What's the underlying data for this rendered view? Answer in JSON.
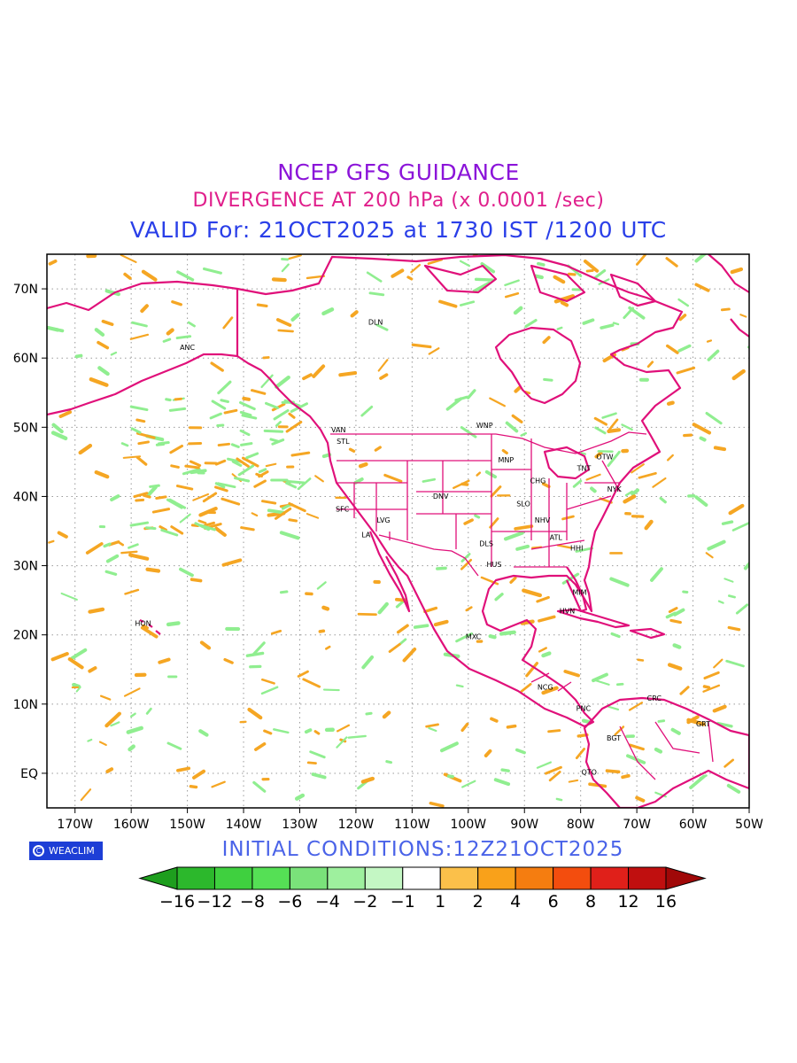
{
  "titles": {
    "line1": "NCEP GFS GUIDANCE",
    "line2": "DIVERGENCE AT 200 hPa (x 0.0001 /sec)",
    "line3": "VALID For: 21OCT2025 at 1730 IST /1200 UTC"
  },
  "colors": {
    "title1": "#8b14d9",
    "title2": "#e0208c",
    "title3": "#2a3fe8",
    "coastline": "#e0107a",
    "grid": "#999999",
    "positive_contour": "#f5a623",
    "negative_contour": "#90ee90"
  },
  "map": {
    "lon_range": [
      -175,
      -50
    ],
    "lat_range": [
      -5,
      75
    ],
    "lon_ticks": [
      "170W",
      "160W",
      "150W",
      "140W",
      "130W",
      "120W",
      "110W",
      "100W",
      "90W",
      "80W",
      "70W",
      "60W",
      "50W"
    ],
    "lat_ticks": [
      "EQ",
      "10N",
      "20N",
      "30N",
      "40N",
      "50N",
      "60N",
      "70N"
    ],
    "stations": [
      {
        "code": "ANC",
        "lon": -150.0,
        "lat": 61.2
      },
      {
        "code": "DLN",
        "lon": -116.5,
        "lat": 64.8
      },
      {
        "code": "VAN",
        "lon": -123.1,
        "lat": 49.3
      },
      {
        "code": "STL",
        "lon": -122.3,
        "lat": 47.6
      },
      {
        "code": "WNP",
        "lon": -97.1,
        "lat": 49.9
      },
      {
        "code": "MNP",
        "lon": -93.3,
        "lat": 44.9
      },
      {
        "code": "OTW",
        "lon": -75.7,
        "lat": 45.4
      },
      {
        "code": "TNT",
        "lon": -79.4,
        "lat": 43.7
      },
      {
        "code": "CHG",
        "lon": -87.6,
        "lat": 41.9
      },
      {
        "code": "NYK",
        "lon": -74.0,
        "lat": 40.7
      },
      {
        "code": "DNV",
        "lon": -104.9,
        "lat": 39.7
      },
      {
        "code": "SLO",
        "lon": -90.2,
        "lat": 38.6
      },
      {
        "code": "SFC",
        "lon": -122.4,
        "lat": 37.8
      },
      {
        "code": "LVG",
        "lon": -115.1,
        "lat": 36.2
      },
      {
        "code": "NHV",
        "lon": -86.8,
        "lat": 36.2
      },
      {
        "code": "LA",
        "lon": -118.2,
        "lat": 34.1
      },
      {
        "code": "ATL",
        "lon": -84.4,
        "lat": 33.7
      },
      {
        "code": "DLS",
        "lon": -96.8,
        "lat": 32.8
      },
      {
        "code": "HHI",
        "lon": -80.7,
        "lat": 32.2
      },
      {
        "code": "HUS",
        "lon": -95.4,
        "lat": 29.8
      },
      {
        "code": "MIM",
        "lon": -80.2,
        "lat": 25.8
      },
      {
        "code": "HON",
        "lon": -157.9,
        "lat": 21.3
      },
      {
        "code": "HVN",
        "lon": -82.4,
        "lat": 23.1
      },
      {
        "code": "MXC",
        "lon": -99.1,
        "lat": 19.4
      },
      {
        "code": "NCG",
        "lon": -86.3,
        "lat": 12.1
      },
      {
        "code": "CRC",
        "lon": -66.9,
        "lat": 10.5
      },
      {
        "code": "PNC",
        "lon": -79.5,
        "lat": 9.0
      },
      {
        "code": "GRT",
        "lon": -58.2,
        "lat": 6.8
      },
      {
        "code": "BGT",
        "lon": -74.1,
        "lat": 4.7
      },
      {
        "code": "QTO",
        "lon": -78.5,
        "lat": -0.2
      }
    ]
  },
  "badge": {
    "label": "WEACLIM",
    "symbol": "C"
  },
  "initial_conditions": "INITIAL  CONDITIONS:12Z21OCT2025",
  "colorbar": {
    "labels": [
      "−16",
      "−12",
      "−8",
      "−6",
      "−4",
      "−2",
      "−1",
      "1",
      "2",
      "4",
      "6",
      "8",
      "12",
      "16"
    ],
    "colors": [
      "#1e9e1e",
      "#2cb82c",
      "#3fd03f",
      "#55e055",
      "#7ae27a",
      "#9ef09e",
      "#c4f7c4",
      "#ffffff",
      "#fbc04a",
      "#f9a11a",
      "#f57d10",
      "#f34d0e",
      "#e0201a",
      "#c00f0f",
      "#a00808"
    ],
    "neg_end_color": "#1e9e1e",
    "pos_end_color": "#a00808"
  }
}
